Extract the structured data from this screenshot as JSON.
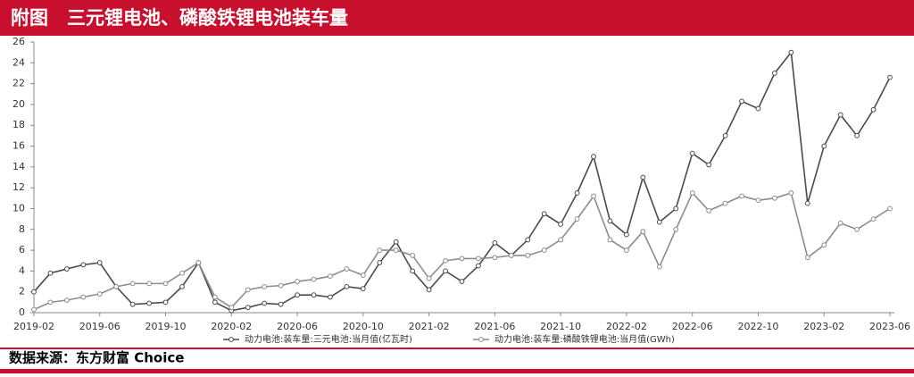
{
  "chart_data": {
    "type": "line",
    "title": "附图　三元锂电池、磷酸铁锂电池装车量",
    "source": "数据来源：东方财富 Choice",
    "categories": [
      "2019-02",
      null,
      null,
      null,
      "2019-06",
      null,
      null,
      null,
      "2019-10",
      null,
      null,
      null,
      "2020-02",
      null,
      null,
      null,
      "2020-06",
      null,
      null,
      null,
      "2020-10",
      null,
      null,
      null,
      "2021-02",
      null,
      null,
      null,
      "2021-06",
      null,
      null,
      null,
      "2021-10",
      null,
      null,
      null,
      "2022-02",
      null,
      null,
      null,
      "2022-06",
      null,
      null,
      null,
      "2022-10",
      null,
      null,
      null,
      "2023-02",
      null,
      null,
      null,
      "2023-06"
    ],
    "series": [
      {
        "name": "动力电池:装车量:三元电池:当月值(亿瓦时)",
        "color": "#4a4a4a",
        "values": [
          2.0,
          3.8,
          4.2,
          4.6,
          4.8,
          2.5,
          0.8,
          0.9,
          1.0,
          2.5,
          4.8,
          1.0,
          0.2,
          0.5,
          0.9,
          0.8,
          1.7,
          1.7,
          1.5,
          2.5,
          2.3,
          4.8,
          6.8,
          4.0,
          2.2,
          4.0,
          3.0,
          4.5,
          6.7,
          5.5,
          7.0,
          9.5,
          8.5,
          11.5,
          15.0,
          8.8,
          7.5,
          13.0,
          8.7,
          10.0,
          15.3,
          14.2,
          17.0,
          20.3,
          19.6,
          23.0,
          25.0,
          10.5,
          16.0,
          19.0,
          17.0,
          19.5,
          22.6
        ]
      },
      {
        "name": "动力电池:装车量:磷酸铁锂电池:当月值(GWh)",
        "color": "#8c8c8c",
        "values": [
          0.3,
          1.0,
          1.2,
          1.5,
          1.8,
          2.5,
          2.8,
          2.8,
          2.8,
          3.8,
          4.8,
          1.5,
          0.5,
          2.2,
          2.5,
          2.6,
          3.0,
          3.2,
          3.5,
          4.2,
          3.6,
          6.0,
          6.0,
          5.5,
          3.3,
          5.0,
          5.2,
          5.2,
          5.3,
          5.5,
          5.5,
          6.0,
          7.0,
          9.0,
          11.2,
          7.0,
          6.0,
          7.8,
          4.4,
          8.0,
          11.5,
          9.8,
          10.5,
          11.2,
          10.8,
          11.0,
          11.5,
          5.3,
          6.5,
          8.6,
          8.0,
          9.0,
          10.0
        ]
      }
    ],
    "ylim": [
      0,
      26
    ],
    "yticks": [
      0,
      2,
      4,
      6,
      8,
      10,
      12,
      14,
      16,
      18,
      20,
      22,
      24,
      26
    ],
    "grid": false
  }
}
